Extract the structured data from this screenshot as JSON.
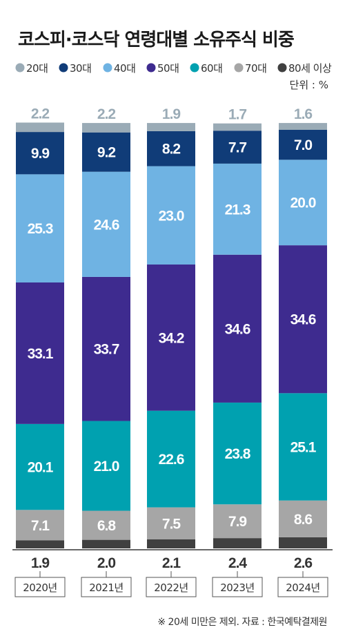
{
  "chart_data": {
    "type": "bar",
    "stacked": true,
    "title": "코스피·코스닥 연령대별 소유주식 비중",
    "unit": "단위 : %",
    "note": "※ 20세 미만은 제외. 자료 : 한국예탁결제원",
    "categories": [
      "2020년",
      "2021년",
      "2022년",
      "2023년",
      "2024년"
    ],
    "series": [
      {
        "name": "80세 이상",
        "color": "#404040",
        "values": [
          1.9,
          2.0,
          2.1,
          2.4,
          2.6
        ]
      },
      {
        "name": "70대",
        "color": "#a6a6a6",
        "values": [
          7.1,
          6.8,
          7.5,
          7.9,
          8.6
        ]
      },
      {
        "name": "60대",
        "color": "#00a1b0",
        "values": [
          20.1,
          21.0,
          22.6,
          23.8,
          25.1
        ]
      },
      {
        "name": "50대",
        "color": "#3e2b8f",
        "values": [
          33.1,
          33.7,
          34.2,
          34.6,
          34.6
        ]
      },
      {
        "name": "40대",
        "color": "#6fb3e3",
        "values": [
          25.3,
          24.6,
          23.0,
          21.3,
          20.0
        ]
      },
      {
        "name": "30대",
        "color": "#103c78",
        "values": [
          9.9,
          9.2,
          8.2,
          7.7,
          7.0
        ]
      },
      {
        "name": "20대",
        "color": "#9aabb6",
        "values": [
          2.2,
          2.2,
          1.9,
          1.7,
          1.6
        ]
      }
    ],
    "legend_order": [
      "20대",
      "30대",
      "40대",
      "50대",
      "60대",
      "70대",
      "80세 이상"
    ],
    "legend_position": "top",
    "ylim": [
      0,
      100
    ],
    "grid": false
  }
}
